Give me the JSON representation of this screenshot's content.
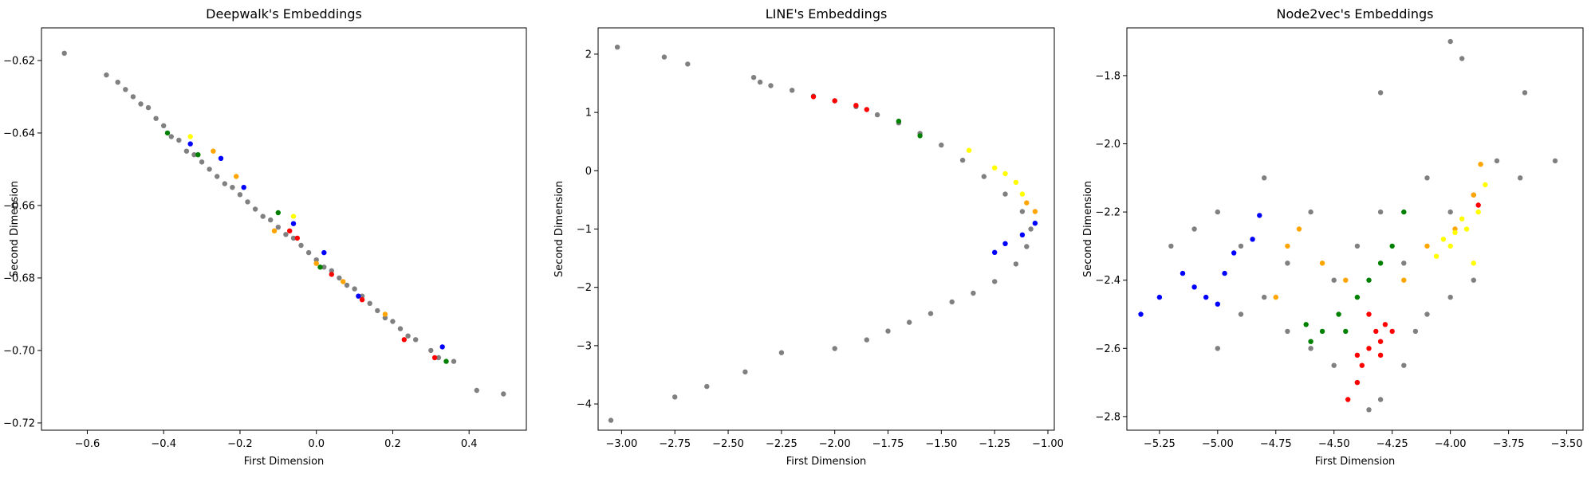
{
  "chart_data": [
    {
      "type": "scatter",
      "title": "Deepwalk's Embeddings",
      "xlabel": "First Dimension",
      "ylabel": "Second Dimension",
      "xlim": [
        -0.72,
        0.55
      ],
      "ylim": [
        -0.722,
        -0.611
      ],
      "xticks": [
        -0.6,
        -0.4,
        -0.2,
        0.0,
        0.2,
        0.4
      ],
      "xtick_labels": [
        "−0.6",
        "−0.4",
        "−0.2",
        "0.0",
        "0.2",
        "0.4"
      ],
      "yticks": [
        -0.72,
        -0.7,
        -0.68,
        -0.66,
        -0.64,
        -0.62
      ],
      "ytick_labels": [
        "−0.72",
        "−0.70",
        "−0.68",
        "−0.66",
        "−0.64",
        "−0.62"
      ],
      "grid": false,
      "series": [
        {
          "color": "#808080",
          "points": [
            [
              -0.66,
              -0.618
            ],
            [
              -0.55,
              -0.624
            ],
            [
              -0.52,
              -0.626
            ],
            [
              -0.5,
              -0.628
            ],
            [
              -0.48,
              -0.63
            ],
            [
              -0.46,
              -0.632
            ],
            [
              -0.44,
              -0.633
            ],
            [
              -0.42,
              -0.636
            ],
            [
              -0.4,
              -0.638
            ],
            [
              -0.38,
              -0.641
            ],
            [
              -0.36,
              -0.642
            ],
            [
              -0.34,
              -0.645
            ],
            [
              -0.32,
              -0.646
            ],
            [
              -0.3,
              -0.648
            ],
            [
              -0.28,
              -0.65
            ],
            [
              -0.26,
              -0.652
            ],
            [
              -0.24,
              -0.654
            ],
            [
              -0.22,
              -0.655
            ],
            [
              -0.2,
              -0.657
            ],
            [
              -0.18,
              -0.659
            ],
            [
              -0.16,
              -0.661
            ],
            [
              -0.14,
              -0.663
            ],
            [
              -0.12,
              -0.664
            ],
            [
              -0.1,
              -0.666
            ],
            [
              -0.08,
              -0.668
            ],
            [
              -0.06,
              -0.669
            ],
            [
              -0.04,
              -0.671
            ],
            [
              -0.02,
              -0.673
            ],
            [
              0.0,
              -0.675
            ],
            [
              0.02,
              -0.677
            ],
            [
              0.04,
              -0.678
            ],
            [
              0.06,
              -0.68
            ],
            [
              0.08,
              -0.682
            ],
            [
              0.1,
              -0.683
            ],
            [
              0.12,
              -0.685
            ],
            [
              0.14,
              -0.687
            ],
            [
              0.16,
              -0.689
            ],
            [
              0.18,
              -0.691
            ],
            [
              0.2,
              -0.692
            ],
            [
              0.22,
              -0.694
            ],
            [
              0.24,
              -0.696
            ],
            [
              0.26,
              -0.697
            ],
            [
              0.3,
              -0.7
            ],
            [
              0.32,
              -0.702
            ],
            [
              0.36,
              -0.703
            ],
            [
              0.42,
              -0.711
            ],
            [
              0.49,
              -0.712
            ]
          ]
        },
        {
          "color": "#0000ff",
          "points": [
            [
              -0.33,
              -0.643
            ],
            [
              -0.25,
              -0.647
            ],
            [
              -0.19,
              -0.655
            ],
            [
              -0.06,
              -0.665
            ],
            [
              0.02,
              -0.673
            ],
            [
              0.11,
              -0.685
            ],
            [
              0.33,
              -0.699
            ]
          ]
        },
        {
          "color": "#ff0000",
          "points": [
            [
              -0.07,
              -0.667
            ],
            [
              -0.05,
              -0.669
            ],
            [
              0.04,
              -0.679
            ],
            [
              0.12,
              -0.686
            ],
            [
              0.23,
              -0.697
            ],
            [
              0.31,
              -0.702
            ]
          ]
        },
        {
          "color": "#ffa500",
          "points": [
            [
              -0.27,
              -0.645
            ],
            [
              -0.21,
              -0.652
            ],
            [
              -0.11,
              -0.667
            ],
            [
              0.0,
              -0.676
            ],
            [
              0.07,
              -0.681
            ],
            [
              0.18,
              -0.69
            ]
          ]
        },
        {
          "color": "#008000",
          "points": [
            [
              -0.39,
              -0.64
            ],
            [
              -0.31,
              -0.646
            ],
            [
              -0.1,
              -0.662
            ],
            [
              0.01,
              -0.677
            ],
            [
              0.34,
              -0.703
            ]
          ]
        },
        {
          "color": "#ffff00",
          "points": [
            [
              -0.33,
              -0.641
            ],
            [
              -0.06,
              -0.663
            ]
          ]
        }
      ]
    },
    {
      "type": "scatter",
      "title": "LINE's Embeddings",
      "xlabel": "First Dimension",
      "ylabel": "Second Dimension",
      "xlim": [
        -3.11,
        -0.97
      ],
      "ylim": [
        -4.45,
        2.45
      ],
      "xticks": [
        -3.0,
        -2.75,
        -2.5,
        -2.25,
        -2.0,
        -1.75,
        -1.5,
        -1.25,
        -1.0
      ],
      "xtick_labels": [
        "−3.00",
        "−2.75",
        "−2.50",
        "−2.25",
        "−2.00",
        "−1.75",
        "−1.50",
        "−1.25",
        "−1.00"
      ],
      "yticks": [
        -4,
        -3,
        -2,
        -1,
        0,
        1,
        2
      ],
      "ytick_labels": [
        "−4",
        "−3",
        "−2",
        "−1",
        "0",
        "1",
        "2"
      ],
      "grid": false,
      "series": [
        {
          "color": "#808080",
          "points": [
            [
              -3.02,
              2.12
            ],
            [
              -2.8,
              1.95
            ],
            [
              -2.69,
              1.83
            ],
            [
              -2.38,
              1.6
            ],
            [
              -2.35,
              1.52
            ],
            [
              -2.3,
              1.46
            ],
            [
              -2.2,
              1.38
            ],
            [
              -2.1,
              1.28
            ],
            [
              -2.0,
              1.2
            ],
            [
              -1.9,
              1.1
            ],
            [
              -1.8,
              0.96
            ],
            [
              -1.7,
              0.82
            ],
            [
              -1.6,
              0.64
            ],
            [
              -1.5,
              0.44
            ],
            [
              -1.4,
              0.18
            ],
            [
              -1.3,
              -0.1
            ],
            [
              -1.2,
              -0.4
            ],
            [
              -1.12,
              -0.7
            ],
            [
              -1.08,
              -1.0
            ],
            [
              -1.1,
              -1.3
            ],
            [
              -1.15,
              -1.6
            ],
            [
              -1.25,
              -1.9
            ],
            [
              -1.35,
              -2.1
            ],
            [
              -1.45,
              -2.25
            ],
            [
              -1.55,
              -2.45
            ],
            [
              -1.65,
              -2.6
            ],
            [
              -1.75,
              -2.75
            ],
            [
              -1.85,
              -2.9
            ],
            [
              -2.0,
              -3.05
            ],
            [
              -2.25,
              -3.12
            ],
            [
              -2.42,
              -3.45
            ],
            [
              -2.6,
              -3.7
            ],
            [
              -2.75,
              -3.88
            ],
            [
              -3.05,
              -4.28
            ]
          ]
        },
        {
          "color": "#ff0000",
          "points": [
            [
              -2.1,
              1.27
            ],
            [
              -2.0,
              1.2
            ],
            [
              -1.9,
              1.12
            ],
            [
              -1.85,
              1.05
            ]
          ]
        },
        {
          "color": "#008000",
          "points": [
            [
              -1.7,
              0.85
            ],
            [
              -1.6,
              0.6
            ]
          ]
        },
        {
          "color": "#ffff00",
          "points": [
            [
              -1.37,
              0.35
            ],
            [
              -1.25,
              0.05
            ],
            [
              -1.2,
              -0.05
            ],
            [
              -1.15,
              -0.2
            ],
            [
              -1.12,
              -0.4
            ]
          ]
        },
        {
          "color": "#ffa500",
          "points": [
            [
              -1.06,
              -0.7
            ],
            [
              -1.1,
              -0.55
            ]
          ]
        },
        {
          "color": "#0000ff",
          "points": [
            [
              -1.06,
              -0.9
            ],
            [
              -1.12,
              -1.1
            ],
            [
              -1.2,
              -1.25
            ],
            [
              -1.25,
              -1.4
            ]
          ]
        }
      ]
    },
    {
      "type": "scatter",
      "title": "Node2vec's Embeddings",
      "xlabel": "First Dimension",
      "ylabel": "Second Dimension",
      "xlim": [
        -5.39,
        -3.43
      ],
      "ylim": [
        -2.84,
        -1.66
      ],
      "xticks": [
        -5.25,
        -5.0,
        -4.75,
        -4.5,
        -4.25,
        -4.0,
        -3.75,
        -3.5
      ],
      "xtick_labels": [
        "−5.25",
        "−5.00",
        "−4.75",
        "−4.50",
        "−4.25",
        "−4.00",
        "−3.75",
        "−3.50"
      ],
      "yticks": [
        -2.8,
        -2.6,
        -2.4,
        -2.2,
        -2.0,
        -1.8
      ],
      "ytick_labels": [
        "−2.8",
        "−2.6",
        "−2.4",
        "−2.2",
        "−2.0",
        "−1.8"
      ],
      "grid": false,
      "series": [
        {
          "color": "#808080",
          "points": [
            [
              -5.2,
              -2.3
            ],
            [
              -5.1,
              -2.25
            ],
            [
              -5.0,
              -2.2
            ],
            [
              -4.9,
              -2.3
            ],
            [
              -4.8,
              -2.1
            ],
            [
              -4.7,
              -2.35
            ],
            [
              -4.6,
              -2.2
            ],
            [
              -4.5,
              -2.4
            ],
            [
              -4.4,
              -2.3
            ],
            [
              -4.3,
              -2.2
            ],
            [
              -4.2,
              -2.35
            ],
            [
              -4.1,
              -2.1
            ],
            [
              -4.0,
              -2.2
            ],
            [
              -3.9,
              -2.15
            ],
            [
              -3.8,
              -2.05
            ],
            [
              -3.7,
              -2.1
            ],
            [
              -3.55,
              -2.05
            ],
            [
              -3.68,
              -1.85
            ],
            [
              -4.0,
              -1.7
            ],
            [
              -3.95,
              -1.75
            ],
            [
              -4.3,
              -1.85
            ],
            [
              -5.0,
              -2.6
            ],
            [
              -4.9,
              -2.5
            ],
            [
              -4.8,
              -2.45
            ],
            [
              -4.7,
              -2.55
            ],
            [
              -4.6,
              -2.6
            ],
            [
              -4.5,
              -2.65
            ],
            [
              -4.4,
              -2.7
            ],
            [
              -4.3,
              -2.75
            ],
            [
              -4.35,
              -2.78
            ],
            [
              -4.2,
              -2.65
            ],
            [
              -4.1,
              -2.5
            ],
            [
              -4.0,
              -2.45
            ],
            [
              -3.9,
              -2.4
            ],
            [
              -4.15,
              -2.55
            ]
          ]
        },
        {
          "color": "#0000ff",
          "points": [
            [
              -5.33,
              -2.5
            ],
            [
              -5.25,
              -2.45
            ],
            [
              -5.15,
              -2.38
            ],
            [
              -5.1,
              -2.42
            ],
            [
              -5.05,
              -2.45
            ],
            [
              -5.0,
              -2.47
            ],
            [
              -4.97,
              -2.38
            ],
            [
              -4.93,
              -2.32
            ],
            [
              -4.85,
              -2.28
            ],
            [
              -4.82,
              -2.21
            ]
          ]
        },
        {
          "color": "#ffa500",
          "points": [
            [
              -4.75,
              -2.45
            ],
            [
              -4.7,
              -2.3
            ],
            [
              -4.65,
              -2.25
            ],
            [
              -4.55,
              -2.35
            ],
            [
              -4.45,
              -2.4
            ],
            [
              -4.2,
              -2.4
            ],
            [
              -4.1,
              -2.3
            ],
            [
              -3.98,
              -2.25
            ],
            [
              -3.9,
              -2.15
            ],
            [
              -3.87,
              -2.06
            ]
          ]
        },
        {
          "color": "#008000",
          "points": [
            [
              -4.62,
              -2.53
            ],
            [
              -4.6,
              -2.58
            ],
            [
              -4.55,
              -2.55
            ],
            [
              -4.48,
              -2.5
            ],
            [
              -4.4,
              -2.45
            ],
            [
              -4.35,
              -2.4
            ],
            [
              -4.3,
              -2.35
            ],
            [
              -4.25,
              -2.3
            ],
            [
              -4.2,
              -2.2
            ],
            [
              -4.45,
              -2.55
            ]
          ]
        },
        {
          "color": "#ff0000",
          "points": [
            [
              -4.44,
              -2.75
            ],
            [
              -4.4,
              -2.7
            ],
            [
              -4.38,
              -2.65
            ],
            [
              -4.35,
              -2.6
            ],
            [
              -4.32,
              -2.55
            ],
            [
              -4.3,
              -2.58
            ],
            [
              -4.28,
              -2.53
            ],
            [
              -4.25,
              -2.55
            ],
            [
              -4.35,
              -2.5
            ],
            [
              -4.4,
              -2.62
            ],
            [
              -4.3,
              -2.62
            ],
            [
              -3.88,
              -2.18
            ]
          ]
        },
        {
          "color": "#ffff00",
          "points": [
            [
              -4.03,
              -2.28
            ],
            [
              -4.0,
              -2.3
            ],
            [
              -3.98,
              -2.26
            ],
            [
              -3.95,
              -2.22
            ],
            [
              -3.93,
              -2.25
            ],
            [
              -3.9,
              -2.35
            ],
            [
              -3.88,
              -2.2
            ],
            [
              -3.85,
              -2.12
            ],
            [
              -4.06,
              -2.33
            ]
          ]
        }
      ]
    }
  ]
}
